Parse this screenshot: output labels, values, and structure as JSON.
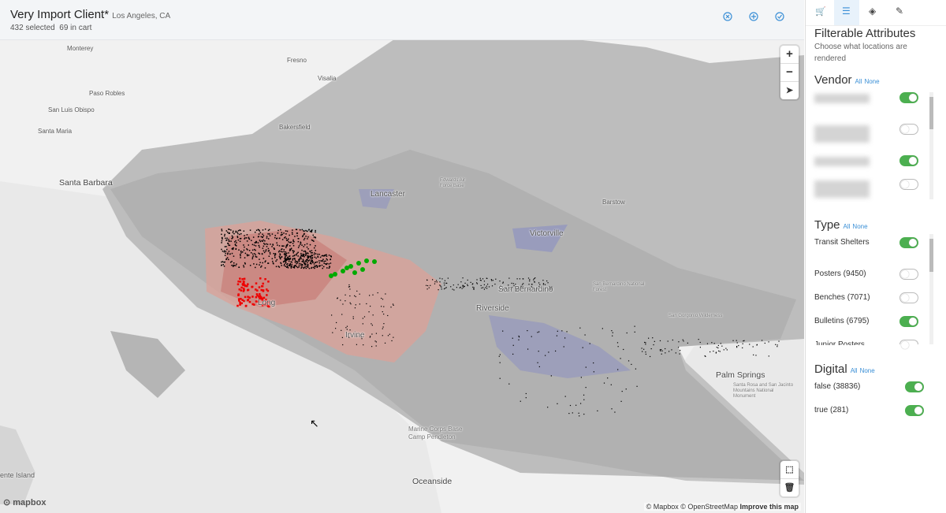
{
  "header": {
    "title": "Very Import Client*",
    "location": "Los Angeles, CA",
    "selected": "432 selected",
    "in_cart": "69 in cart"
  },
  "map": {
    "labels": [
      "Santa Barbara",
      "Lancaster",
      "Victorville",
      "San Bernardino",
      "Riverside",
      "Long",
      "Irvine",
      "Palm Springs",
      "Oceanside",
      "Marine Corps Base Camp Pendleton",
      "Bakersfield",
      "Paso Robles",
      "San Luis Obispo",
      "Santa Maria",
      "Monterey",
      "Fresno",
      "Visalia",
      "Barstow",
      "Santa Rosa and San Jacinto Mountains National Monument",
      "San Gorgonio Wilderness",
      "San Bernardino National Forest",
      "Edwards Air Force Base",
      "ente Island"
    ],
    "attribution": "© Mapbox © OpenStreetMap",
    "improve": "Improve this map",
    "logo": "mapbox"
  },
  "sidebar": {
    "title": "Filterable Attributes",
    "subtitle": "Choose what locations are rendered",
    "vendor": {
      "heading": "Vendor",
      "all": "All",
      "none": "None",
      "toggles": [
        true,
        false,
        true,
        false
      ]
    },
    "type": {
      "heading": "Type",
      "all": "All",
      "none": "None",
      "items": [
        {
          "label": "Transit Shelters",
          "on": true
        },
        {
          "label": "Posters (9450)",
          "on": false
        },
        {
          "label": "Benches (7071)",
          "on": false
        },
        {
          "label": "Bulletins (6795)",
          "on": true
        },
        {
          "label": "Junior Posters",
          "on": false
        }
      ]
    },
    "digital": {
      "heading": "Digital",
      "all": "All",
      "none": "None",
      "items": [
        {
          "label": "false (38836)",
          "on": true
        },
        {
          "label": "true (281)",
          "on": true
        }
      ]
    }
  }
}
